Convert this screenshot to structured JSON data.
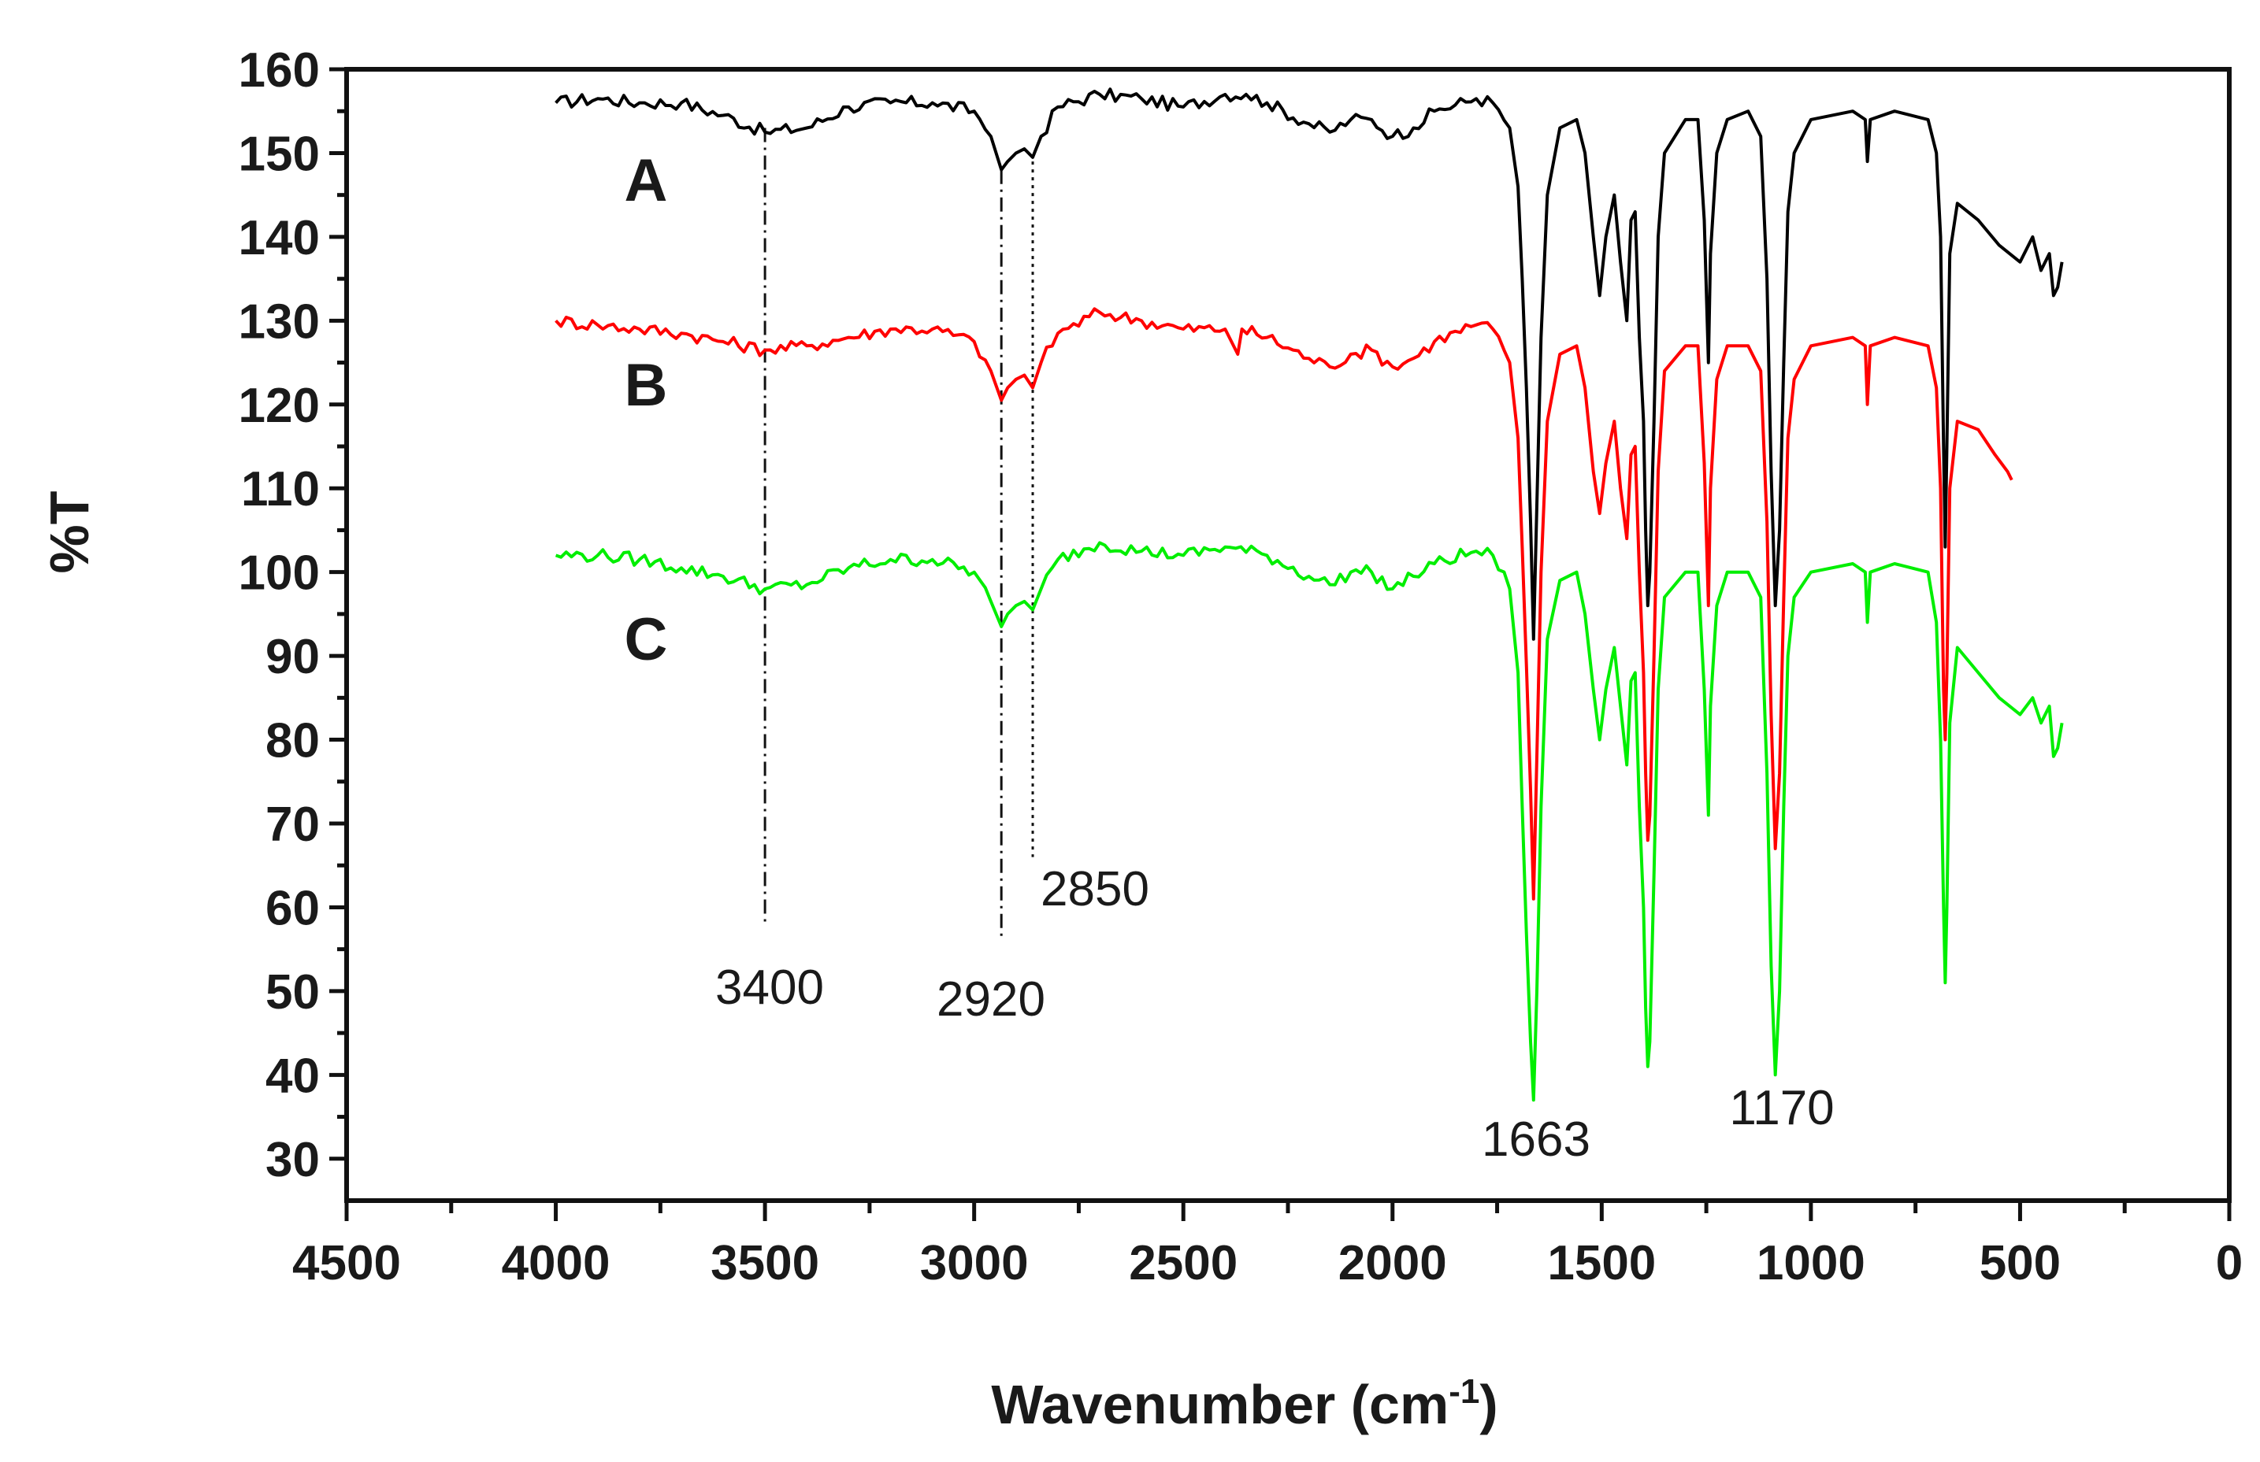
{
  "chart_data": {
    "type": "line",
    "title": "",
    "xlabel": "Wavenumber (cm",
    "xlabel_sup": "-1",
    "xlabel_close": ")",
    "ylabel": "%T",
    "xlim": [
      4500,
      0
    ],
    "ylim": [
      25,
      160
    ],
    "x_ticks": [
      4500,
      4000,
      3500,
      3000,
      2500,
      2000,
      1500,
      1000,
      500,
      0
    ],
    "y_ticks": [
      30,
      40,
      50,
      60,
      70,
      80,
      90,
      100,
      110,
      120,
      130,
      140,
      150,
      160
    ],
    "grid": false,
    "series": [
      {
        "name": "A",
        "color": "#000000",
        "points": [
          [
            4000,
            156
          ],
          [
            3900,
            156.5
          ],
          [
            3800,
            156
          ],
          [
            3700,
            156
          ],
          [
            3600,
            154.5
          ],
          [
            3500,
            152.5
          ],
          [
            3400,
            153
          ],
          [
            3300,
            155.5
          ],
          [
            3200,
            156
          ],
          [
            3100,
            156
          ],
          [
            3000,
            155
          ],
          [
            2960,
            152
          ],
          [
            2935,
            148
          ],
          [
            2920,
            149
          ],
          [
            2900,
            150
          ],
          [
            2880,
            150.5
          ],
          [
            2860,
            149.5
          ],
          [
            2840,
            152
          ],
          [
            2800,
            155.5
          ],
          [
            2700,
            157
          ],
          [
            2600,
            156.5
          ],
          [
            2500,
            155.5
          ],
          [
            2400,
            157
          ],
          [
            2350,
            157
          ],
          [
            2300,
            156
          ],
          [
            2200,
            153.5
          ],
          [
            2150,
            152.5
          ],
          [
            2100,
            154
          ],
          [
            2050,
            154
          ],
          [
            2000,
            152
          ],
          [
            1950,
            153
          ],
          [
            1900,
            155
          ],
          [
            1800,
            156.5
          ],
          [
            1760,
            156
          ],
          [
            1720,
            153
          ],
          [
            1700,
            146
          ],
          [
            1690,
            135
          ],
          [
            1680,
            122
          ],
          [
            1670,
            106
          ],
          [
            1663,
            92
          ],
          [
            1655,
            108
          ],
          [
            1645,
            128
          ],
          [
            1630,
            145
          ],
          [
            1600,
            153
          ],
          [
            1560,
            154
          ],
          [
            1540,
            150
          ],
          [
            1520,
            140
          ],
          [
            1505,
            133
          ],
          [
            1490,
            140
          ],
          [
            1470,
            145
          ],
          [
            1455,
            137
          ],
          [
            1440,
            130
          ],
          [
            1430,
            142
          ],
          [
            1420,
            143
          ],
          [
            1410,
            128
          ],
          [
            1400,
            118
          ],
          [
            1395,
            105
          ],
          [
            1390,
            96
          ],
          [
            1385,
            100
          ],
          [
            1375,
            118
          ],
          [
            1365,
            140
          ],
          [
            1350,
            150
          ],
          [
            1300,
            154
          ],
          [
            1270,
            154
          ],
          [
            1255,
            142
          ],
          [
            1245,
            125
          ],
          [
            1240,
            138
          ],
          [
            1225,
            150
          ],
          [
            1200,
            154
          ],
          [
            1150,
            155
          ],
          [
            1120,
            152
          ],
          [
            1105,
            135
          ],
          [
            1095,
            112
          ],
          [
            1085,
            96
          ],
          [
            1075,
            105
          ],
          [
            1065,
            125
          ],
          [
            1055,
            143
          ],
          [
            1040,
            150
          ],
          [
            1000,
            154
          ],
          [
            900,
            155
          ],
          [
            870,
            154
          ],
          [
            865,
            149
          ],
          [
            858,
            154
          ],
          [
            800,
            155
          ],
          [
            720,
            154
          ],
          [
            700,
            150
          ],
          [
            690,
            140
          ],
          [
            683,
            115
          ],
          [
            679,
            103
          ],
          [
            675,
            115
          ],
          [
            668,
            138
          ],
          [
            650,
            144
          ],
          [
            600,
            142
          ],
          [
            550,
            139
          ],
          [
            500,
            137
          ],
          [
            470,
            140
          ],
          [
            450,
            136
          ],
          [
            430,
            138
          ],
          [
            420,
            133
          ],
          [
            410,
            134
          ],
          [
            400,
            137
          ]
        ]
      },
      {
        "name": "B",
        "color": "#ff0000",
        "points": [
          [
            4000,
            130
          ],
          [
            3900,
            129.5
          ],
          [
            3800,
            129
          ],
          [
            3700,
            128.5
          ],
          [
            3600,
            127.5
          ],
          [
            3500,
            126.5
          ],
          [
            3400,
            127
          ],
          [
            3300,
            128
          ],
          [
            3200,
            129
          ],
          [
            3100,
            129
          ],
          [
            3000,
            127.5
          ],
          [
            2960,
            124
          ],
          [
            2935,
            120.5
          ],
          [
            2920,
            122
          ],
          [
            2900,
            123
          ],
          [
            2880,
            123.5
          ],
          [
            2860,
            122
          ],
          [
            2840,
            125
          ],
          [
            2800,
            128.5
          ],
          [
            2700,
            131
          ],
          [
            2600,
            130
          ],
          [
            2500,
            129
          ],
          [
            2400,
            129
          ],
          [
            2370,
            126
          ],
          [
            2360,
            129
          ],
          [
            2300,
            128
          ],
          [
            2200,
            125.5
          ],
          [
            2150,
            124.5
          ],
          [
            2100,
            126
          ],
          [
            2050,
            126.5
          ],
          [
            2000,
            124.5
          ],
          [
            1950,
            125.5
          ],
          [
            1900,
            127.5
          ],
          [
            1800,
            129.5
          ],
          [
            1760,
            129
          ],
          [
            1720,
            125
          ],
          [
            1700,
            116
          ],
          [
            1690,
            103
          ],
          [
            1680,
            89
          ],
          [
            1670,
            74
          ],
          [
            1663,
            61
          ],
          [
            1655,
            78
          ],
          [
            1645,
            100
          ],
          [
            1630,
            118
          ],
          [
            1600,
            126
          ],
          [
            1560,
            127
          ],
          [
            1540,
            122
          ],
          [
            1520,
            112
          ],
          [
            1505,
            107
          ],
          [
            1490,
            113
          ],
          [
            1470,
            118
          ],
          [
            1455,
            110
          ],
          [
            1440,
            104
          ],
          [
            1430,
            114
          ],
          [
            1420,
            115
          ],
          [
            1410,
            100
          ],
          [
            1400,
            88
          ],
          [
            1395,
            76
          ],
          [
            1390,
            68
          ],
          [
            1385,
            71
          ],
          [
            1375,
            90
          ],
          [
            1365,
            112
          ],
          [
            1350,
            124
          ],
          [
            1300,
            127
          ],
          [
            1270,
            127
          ],
          [
            1255,
            113
          ],
          [
            1245,
            96
          ],
          [
            1240,
            110
          ],
          [
            1225,
            123
          ],
          [
            1200,
            127
          ],
          [
            1150,
            127
          ],
          [
            1120,
            124
          ],
          [
            1105,
            106
          ],
          [
            1095,
            83
          ],
          [
            1085,
            67
          ],
          [
            1075,
            76
          ],
          [
            1065,
            97
          ],
          [
            1055,
            116
          ],
          [
            1040,
            123
          ],
          [
            1000,
            127
          ],
          [
            900,
            128
          ],
          [
            870,
            127
          ],
          [
            865,
            120
          ],
          [
            858,
            127
          ],
          [
            800,
            128
          ],
          [
            720,
            127
          ],
          [
            700,
            122
          ],
          [
            690,
            110
          ],
          [
            683,
            86
          ],
          [
            679,
            80
          ],
          [
            675,
            88
          ],
          [
            668,
            110
          ],
          [
            650,
            118
          ],
          [
            600,
            117
          ],
          [
            560,
            114
          ],
          [
            530,
            112
          ],
          [
            520,
            111
          ]
        ]
      },
      {
        "name": "C",
        "color": "#00ee00",
        "points": [
          [
            4000,
            102
          ],
          [
            3900,
            102
          ],
          [
            3800,
            101.5
          ],
          [
            3700,
            100.5
          ],
          [
            3600,
            99.5
          ],
          [
            3500,
            98
          ],
          [
            3400,
            98.5
          ],
          [
            3300,
            100.5
          ],
          [
            3200,
            101.5
          ],
          [
            3100,
            101.5
          ],
          [
            3000,
            100
          ],
          [
            2960,
            96.5
          ],
          [
            2935,
            93.5
          ],
          [
            2920,
            95
          ],
          [
            2900,
            96
          ],
          [
            2880,
            96.5
          ],
          [
            2860,
            95.5
          ],
          [
            2840,
            98
          ],
          [
            2800,
            101.5
          ],
          [
            2700,
            103.5
          ],
          [
            2600,
            102.5
          ],
          [
            2500,
            102
          ],
          [
            2400,
            103
          ],
          [
            2300,
            102
          ],
          [
            2200,
            99.5
          ],
          [
            2150,
            98.5
          ],
          [
            2100,
            100
          ],
          [
            2050,
            100
          ],
          [
            2000,
            98
          ],
          [
            1950,
            99.5
          ],
          [
            1900,
            101
          ],
          [
            1800,
            102.5
          ],
          [
            1760,
            102
          ],
          [
            1720,
            98
          ],
          [
            1700,
            88
          ],
          [
            1690,
            72
          ],
          [
            1680,
            57
          ],
          [
            1670,
            44
          ],
          [
            1663,
            37
          ],
          [
            1655,
            50
          ],
          [
            1645,
            72
          ],
          [
            1630,
            92
          ],
          [
            1600,
            99
          ],
          [
            1560,
            100
          ],
          [
            1540,
            95
          ],
          [
            1520,
            86
          ],
          [
            1505,
            80
          ],
          [
            1490,
            86
          ],
          [
            1470,
            91
          ],
          [
            1455,
            84
          ],
          [
            1440,
            77
          ],
          [
            1430,
            87
          ],
          [
            1420,
            88
          ],
          [
            1410,
            72
          ],
          [
            1400,
            60
          ],
          [
            1395,
            48
          ],
          [
            1390,
            41
          ],
          [
            1385,
            44
          ],
          [
            1375,
            64
          ],
          [
            1365,
            86
          ],
          [
            1350,
            97
          ],
          [
            1300,
            100
          ],
          [
            1270,
            100
          ],
          [
            1255,
            86
          ],
          [
            1245,
            71
          ],
          [
            1240,
            84
          ],
          [
            1225,
            96
          ],
          [
            1200,
            100
          ],
          [
            1150,
            100
          ],
          [
            1120,
            97
          ],
          [
            1105,
            76
          ],
          [
            1095,
            53
          ],
          [
            1085,
            40
          ],
          [
            1075,
            50
          ],
          [
            1065,
            72
          ],
          [
            1055,
            90
          ],
          [
            1040,
            97
          ],
          [
            1000,
            100
          ],
          [
            900,
            101
          ],
          [
            870,
            100
          ],
          [
            865,
            94
          ],
          [
            858,
            100
          ],
          [
            800,
            101
          ],
          [
            720,
            100
          ],
          [
            700,
            94
          ],
          [
            690,
            80
          ],
          [
            683,
            60
          ],
          [
            679,
            51
          ],
          [
            675,
            60
          ],
          [
            668,
            82
          ],
          [
            650,
            91
          ],
          [
            600,
            88
          ],
          [
            550,
            85
          ],
          [
            500,
            83
          ],
          [
            470,
            85
          ],
          [
            450,
            82
          ],
          [
            430,
            84
          ],
          [
            420,
            78
          ],
          [
            410,
            79
          ],
          [
            400,
            82
          ]
        ]
      }
    ],
    "annotations": [
      {
        "label": "3400",
        "x": 3500,
        "y_top": 153,
        "y_bottom": 58
      },
      {
        "label": "2920",
        "x": 2935,
        "y_top": 148,
        "y_bottom": 56
      },
      {
        "label": "2850",
        "x": 2860,
        "y_top": 149,
        "y_bottom": 66
      },
      {
        "label": "1663",
        "x": 1663
      },
      {
        "label": "1170",
        "x": 1085
      }
    ]
  }
}
